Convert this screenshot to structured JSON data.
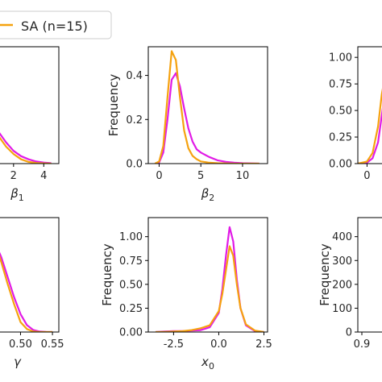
{
  "legend": {
    "entries": [
      {
        "label": "SA (n=15)",
        "color": "#f5a20f"
      }
    ]
  },
  "colors": {
    "orange": "#f5a20f",
    "magenta": "#e11be6"
  },
  "chart_data": [
    {
      "type": "line",
      "id": "p11",
      "xlabel": "β1",
      "ylabel": "",
      "xticks": [
        "2",
        "4"
      ],
      "xtick_values": [
        2,
        4
      ],
      "yticks": [],
      "ytick_values": [],
      "xlim": [
        -0.5,
        5
      ],
      "ylim": [
        0,
        0.55
      ],
      "series": [
        {
          "color": "#e11be6",
          "x": [
            -0.5,
            0,
            0.5,
            1,
            1.5,
            2,
            2.5,
            3,
            3.5,
            4,
            4.5
          ],
          "y": [
            0.55,
            0.4,
            0.24,
            0.15,
            0.1,
            0.06,
            0.035,
            0.02,
            0.01,
            0.005,
            0.002
          ]
        },
        {
          "color": "#f5a20f",
          "x": [
            -0.5,
            0,
            0.5,
            1,
            1.5,
            2,
            2.5,
            3,
            3.5,
            4,
            4.5
          ],
          "y": [
            0.55,
            0.38,
            0.22,
            0.13,
            0.08,
            0.045,
            0.02,
            0.008,
            0.003,
            0.001,
            0.0
          ]
        }
      ]
    },
    {
      "type": "line",
      "id": "p12",
      "xlabel": "β2",
      "ylabel": "Frequency",
      "xticks": [
        "0",
        "5",
        "10"
      ],
      "xtick_values": [
        0,
        5,
        10
      ],
      "yticks": [
        "0.0",
        "0.2",
        "0.4"
      ],
      "ytick_values": [
        0,
        0.2,
        0.4
      ],
      "xlim": [
        -1.3,
        13
      ],
      "ylim": [
        0,
        0.53
      ],
      "series": [
        {
          "color": "#e11be6",
          "x": [
            -0.5,
            0,
            0.5,
            1,
            1.5,
            2,
            2.5,
            3,
            3.5,
            4,
            4.5,
            5,
            6,
            7,
            8,
            9,
            10,
            11,
            12
          ],
          "y": [
            0,
            0.005,
            0.05,
            0.2,
            0.38,
            0.41,
            0.35,
            0.25,
            0.16,
            0.1,
            0.065,
            0.05,
            0.03,
            0.015,
            0.008,
            0.004,
            0.002,
            0.001,
            0
          ]
        },
        {
          "color": "#f5a20f",
          "x": [
            -0.5,
            0,
            0.5,
            1,
            1.5,
            2,
            2.5,
            3,
            3.5,
            4,
            4.5,
            5,
            6,
            7,
            8,
            9,
            10,
            11,
            12
          ],
          "y": [
            0,
            0.01,
            0.08,
            0.3,
            0.51,
            0.47,
            0.3,
            0.15,
            0.07,
            0.035,
            0.02,
            0.01,
            0.004,
            0.002,
            0.001,
            0,
            0,
            0,
            0
          ]
        }
      ]
    },
    {
      "type": "line",
      "id": "p13",
      "xlabel": "",
      "ylabel": "",
      "xticks": [
        "0"
      ],
      "xtick_values": [
        0
      ],
      "yticks": [
        "0.00",
        "0.25",
        "0.50",
        "0.75",
        "1.00"
      ],
      "ytick_values": [
        0,
        0.25,
        0.5,
        0.75,
        1.0
      ],
      "xlim": [
        -0.5,
        3
      ],
      "ylim": [
        0,
        1.1
      ],
      "series": [
        {
          "color": "#e11be6",
          "x": [
            -0.5,
            0,
            0.3,
            0.6,
            0.8,
            1.0,
            1.2,
            1.4
          ],
          "y": [
            0,
            0.01,
            0.05,
            0.2,
            0.45,
            0.7,
            0.85,
            0.9
          ]
        },
        {
          "color": "#f5a20f",
          "x": [
            -0.5,
            0,
            0.3,
            0.6,
            0.8,
            1.0,
            1.2,
            1.4
          ],
          "y": [
            0,
            0.02,
            0.1,
            0.35,
            0.65,
            0.85,
            0.95,
            1.0
          ]
        }
      ]
    },
    {
      "type": "line",
      "id": "p21",
      "xlabel": "γ",
      "ylabel": "",
      "xticks": [
        "0.50",
        "0.55"
      ],
      "xtick_values": [
        0.5,
        0.55
      ],
      "yticks": [],
      "ytick_values": [],
      "xlim": [
        0.43,
        0.56
      ],
      "ylim": [
        0,
        1.15
      ],
      "series": [
        {
          "color": "#e11be6",
          "x": [
            0.43,
            0.44,
            0.45,
            0.46,
            0.47,
            0.48,
            0.49,
            0.5,
            0.51,
            0.52,
            0.53,
            0.54,
            0.55
          ],
          "y": [
            1.0,
            1.05,
            1.0,
            0.9,
            0.75,
            0.55,
            0.35,
            0.18,
            0.07,
            0.02,
            0.005,
            0.001,
            0
          ]
        },
        {
          "color": "#f5a20f",
          "x": [
            0.43,
            0.44,
            0.45,
            0.46,
            0.47,
            0.48,
            0.49,
            0.5,
            0.51,
            0.52,
            0.53,
            0.54,
            0.55
          ],
          "y": [
            1.1,
            1.14,
            1.05,
            0.9,
            0.7,
            0.48,
            0.28,
            0.1,
            0.03,
            0.005,
            0,
            0,
            0
          ]
        }
      ]
    },
    {
      "type": "line",
      "id": "p22",
      "xlabel": "x0",
      "ylabel": "Frequency",
      "xticks": [
        "-2.5",
        "0.0",
        "2.5"
      ],
      "xtick_values": [
        -2.5,
        0,
        2.5
      ],
      "yticks": [
        "0.00",
        "0.25",
        "0.50",
        "0.75",
        "1.00"
      ],
      "ytick_values": [
        0,
        0.25,
        0.5,
        0.75,
        1.0
      ],
      "xlim": [
        -3.9,
        2.7
      ],
      "ylim": [
        0,
        1.2
      ],
      "series": [
        {
          "color": "#e11be6",
          "x": [
            -3.5,
            -3,
            -2.5,
            -2,
            -1.5,
            -1,
            -0.5,
            0,
            0.2,
            0.4,
            0.6,
            0.8,
            1,
            1.2,
            1.5,
            2,
            2.5
          ],
          "y": [
            0,
            0.005,
            0.01,
            0.01,
            0.015,
            0.02,
            0.05,
            0.2,
            0.45,
            0.8,
            1.1,
            0.95,
            0.55,
            0.25,
            0.07,
            0.01,
            0
          ]
        },
        {
          "color": "#f5a20f",
          "x": [
            -3.5,
            -3,
            -2.5,
            -2,
            -1.5,
            -1,
            -0.5,
            0,
            0.2,
            0.4,
            0.6,
            0.8,
            1,
            1.2,
            1.5,
            2,
            2.5
          ],
          "y": [
            0,
            0.002,
            0.005,
            0.01,
            0.02,
            0.04,
            0.07,
            0.22,
            0.4,
            0.65,
            0.9,
            0.8,
            0.5,
            0.25,
            0.08,
            0.015,
            0
          ]
        }
      ]
    },
    {
      "type": "line",
      "id": "p23",
      "xlabel": "",
      "ylabel": "Frequency",
      "xticks": [
        "0.9"
      ],
      "xtick_values": [
        0.9
      ],
      "yticks": [
        "0",
        "100",
        "200",
        "300",
        "400"
      ],
      "ytick_values": [
        0,
        100,
        200,
        300,
        400
      ],
      "xlim": [
        0.88,
        1.2
      ],
      "ylim": [
        0,
        480
      ],
      "series": []
    }
  ]
}
